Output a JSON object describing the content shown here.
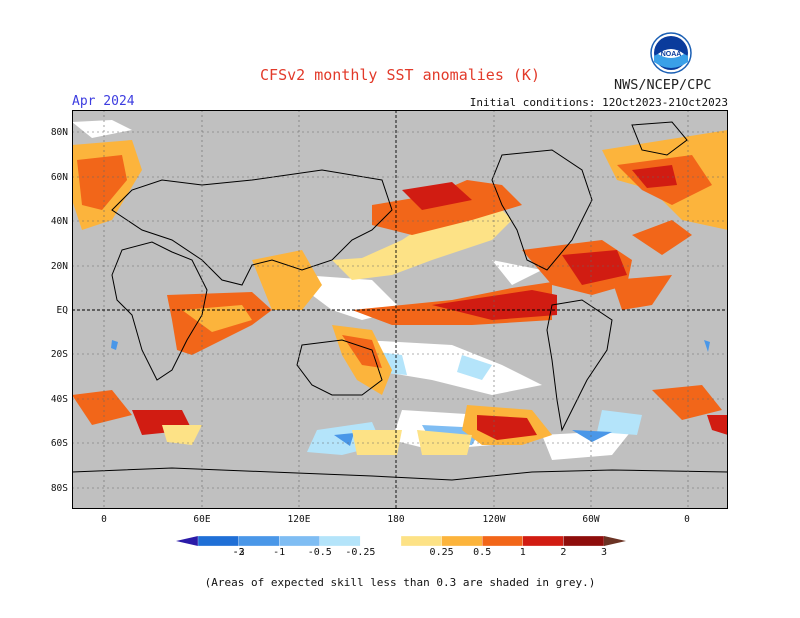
{
  "title": "CFSv2 monthly SST anomalies (K)",
  "organization": "NWS/NCEP/CPC",
  "logo_text": "NOAA",
  "forecast_month": "Apr 2024",
  "initial_conditions": "Initial conditions: 12Oct2023-21Oct2023",
  "footnote": "(Areas of expected skill less than 0.3 are shaded in grey.)",
  "lat_labels": [
    "80N",
    "60N",
    "40N",
    "20N",
    "EQ",
    "20S",
    "40S",
    "60S",
    "80S"
  ],
  "lon_labels": [
    "0",
    "60E",
    "120E",
    "180",
    "120W",
    "60W",
    "0"
  ],
  "colorbar": {
    "tick_labels": [
      "-3",
      "-2",
      "-1",
      "-0.5",
      "-0.25",
      "0.25",
      "0.5",
      "1",
      "2",
      "3"
    ],
    "colors": [
      "#2b1ba8",
      "#1f6fd6",
      "#4a97e8",
      "#7fbdf3",
      "#b4e4fa",
      "#ffffff",
      "#fde286",
      "#fcb43c",
      "#f26619",
      "#d11c12",
      "#8e0d0b",
      "#6b3324"
    ]
  },
  "colors": {
    "land": "#c0c0c0",
    "title": "#e23a2a",
    "month": "#3d3de0"
  }
}
